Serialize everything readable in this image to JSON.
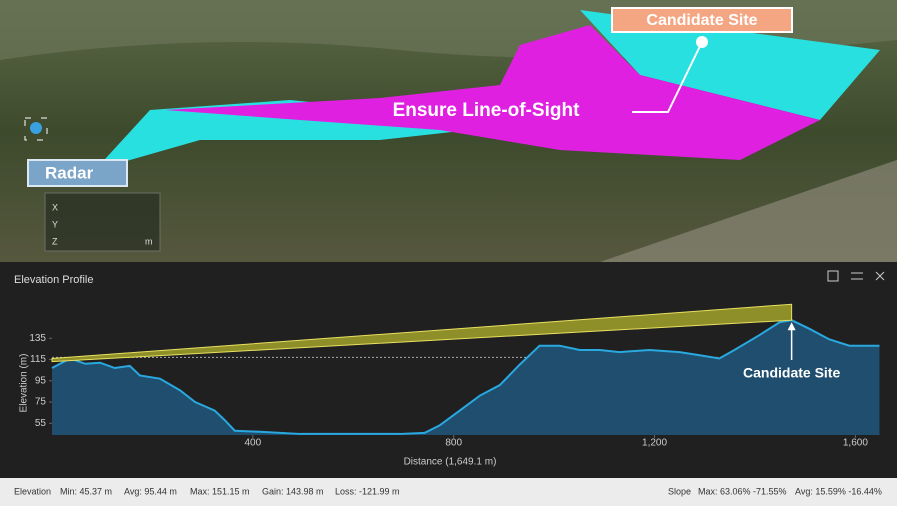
{
  "map": {
    "site_label": "Candidate Site",
    "los_label": "Ensure Line-of-Sight",
    "radar_label": "Radar",
    "coord_labels": [
      "X",
      "Y",
      "Z"
    ],
    "coord_unit": "m"
  },
  "panel": {
    "title": "Elevation Profile"
  },
  "chart_data": {
    "type": "area",
    "ylabel": "Elevation (m)",
    "xlabel": "Distance (1,649.1 m)",
    "annotation": "Candidate Site",
    "color": "#29a9e0",
    "x": [
      0,
      36,
      66,
      96,
      125,
      155,
      175,
      215,
      255,
      285,
      324,
      344,
      364,
      414,
      494,
      593,
      693,
      742,
      772,
      812,
      852,
      892,
      931,
      971,
      1011,
      1051,
      1091,
      1130,
      1190,
      1250,
      1290,
      1329,
      1359,
      1409,
      1449,
      1473,
      1508,
      1548,
      1588,
      1648
    ],
    "values": [
      107,
      116,
      111,
      112,
      107,
      109,
      100,
      97,
      86,
      75,
      67,
      58,
      48,
      47,
      45,
      45,
      45,
      46,
      53,
      67,
      81,
      91,
      110,
      128,
      128,
      124,
      124,
      122,
      124,
      122,
      119,
      116,
      124,
      138,
      150,
      152,
      144,
      134,
      128,
      128
    ],
    "sight_band": {
      "x": [
        0,
        1473
      ],
      "lower": [
        113,
        152
      ],
      "upper": [
        116,
        167
      ],
      "color": "#8f8f2a"
    },
    "reference_line": 117,
    "xlim": [
      0,
      1649
    ],
    "ylim": [
      44,
      171
    ],
    "xticks": [
      400,
      800,
      {
        "value": 1200,
        "label": "1,200"
      },
      {
        "value": 1600,
        "label": "1,600"
      }
    ],
    "yticks": [
      55,
      75,
      95,
      115,
      135
    ]
  },
  "footer": {
    "elevation": [
      "Elevation",
      "Min: 45.37 m",
      "Avg: 95.44 m",
      "Max: 151.15 m",
      "Gain: 143.98 m",
      "Loss: -121.99 m"
    ],
    "slope": [
      "Slope",
      "Max: 63.06% -71.55%",
      "Avg: 15.59% -16.44%"
    ]
  }
}
